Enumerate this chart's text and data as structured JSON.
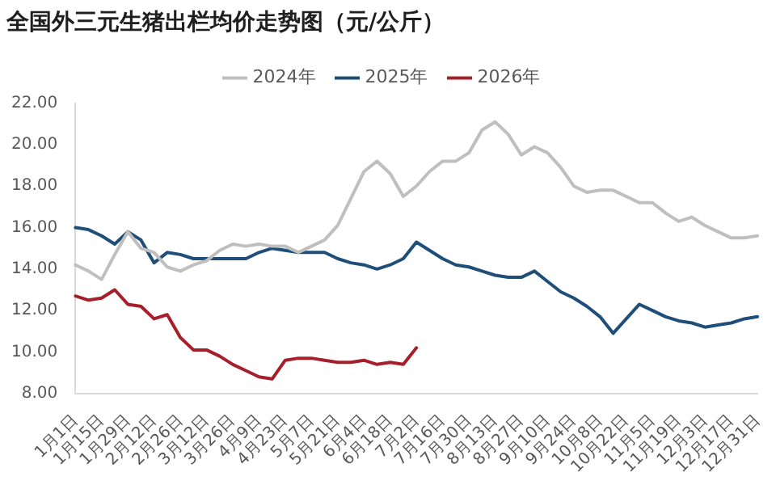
{
  "chart_data": {
    "type": "line",
    "title": "全国外三元生猪出栏均价走势图（元/公斤）",
    "categories": [
      "1月1日",
      null,
      "1月15日",
      null,
      "1月29日",
      null,
      "2月12日",
      null,
      "2月26日",
      null,
      "3月12日",
      null,
      "3月26日",
      null,
      "4月9日",
      null,
      "4月23日",
      null,
      "5月7日",
      null,
      "5月21日",
      null,
      "6月4日",
      null,
      "6月18日",
      null,
      "7月2日",
      null,
      "7月16日",
      null,
      "7月30日",
      null,
      "8月13日",
      null,
      "8月27日",
      null,
      "9月10日",
      null,
      "9月24日",
      null,
      "10月8日",
      null,
      "10月22日",
      null,
      "11月5日",
      null,
      "11月19日",
      null,
      "12月3日",
      null,
      "12月17日",
      null,
      "12月31日"
    ],
    "series": [
      {
        "name": "2024年",
        "color": "#bfbfbf",
        "values": [
          14.2,
          13.9,
          13.5,
          14.7,
          15.8,
          15.0,
          14.8,
          14.1,
          13.9,
          14.2,
          14.4,
          14.9,
          15.2,
          15.1,
          15.2,
          15.1,
          15.1,
          14.8,
          15.1,
          15.4,
          16.1,
          17.4,
          18.7,
          19.2,
          18.6,
          17.5,
          18.0,
          18.7,
          19.2,
          19.2,
          19.6,
          20.7,
          21.1,
          20.5,
          19.5,
          19.9,
          19.6,
          18.9,
          18.0,
          17.7,
          17.8,
          17.8,
          17.5,
          17.2,
          17.2,
          16.7,
          16.3,
          16.5,
          16.1,
          15.8,
          15.5,
          15.5,
          15.6
        ]
      },
      {
        "name": "2025年",
        "color": "#1f4e79",
        "values": [
          16.0,
          15.9,
          15.6,
          15.2,
          15.8,
          15.4,
          14.3,
          14.8,
          14.7,
          14.5,
          14.5,
          14.5,
          14.5,
          14.5,
          14.8,
          15.0,
          14.9,
          14.8,
          14.8,
          14.8,
          14.5,
          14.3,
          14.2,
          14.0,
          14.2,
          14.5,
          15.3,
          14.9,
          14.5,
          14.2,
          14.1,
          13.9,
          13.7,
          13.6,
          13.6,
          13.9,
          13.4,
          12.9,
          12.6,
          12.2,
          11.7,
          10.9,
          11.6,
          12.3,
          12.0,
          11.7,
          11.5,
          11.4,
          11.2,
          11.3,
          11.4,
          11.6,
          11.7
        ]
      },
      {
        "name": "2026年",
        "color": "#a5202a",
        "values": [
          12.7,
          12.5,
          12.6,
          13.0,
          12.3,
          12.2,
          11.6,
          11.8,
          10.7,
          10.1,
          10.1,
          9.8,
          9.4,
          9.1,
          8.8,
          8.7,
          9.6,
          9.7,
          9.7,
          9.6,
          9.5,
          9.5,
          9.6,
          9.4,
          9.5,
          9.4,
          10.2,
          null,
          null,
          null,
          null,
          null,
          null,
          null,
          null,
          null,
          null,
          null,
          null,
          null,
          null,
          null,
          null,
          null,
          null,
          null,
          null,
          null,
          null,
          null,
          null,
          null,
          null
        ]
      }
    ],
    "ylim": [
      8,
      22
    ],
    "yticks": [
      {
        "value": 8,
        "label": "8.00"
      },
      {
        "value": 10,
        "label": "10.00"
      },
      {
        "value": 12,
        "label": "12.00"
      },
      {
        "value": 14,
        "label": "14.00"
      },
      {
        "value": 16,
        "label": "16.00"
      },
      {
        "value": 18,
        "label": "18.00"
      },
      {
        "value": 20,
        "label": "20.00"
      },
      {
        "value": 22,
        "label": "22.00"
      }
    ],
    "grid": false,
    "legend": "top",
    "marker": "none",
    "line_style": "solid"
  }
}
